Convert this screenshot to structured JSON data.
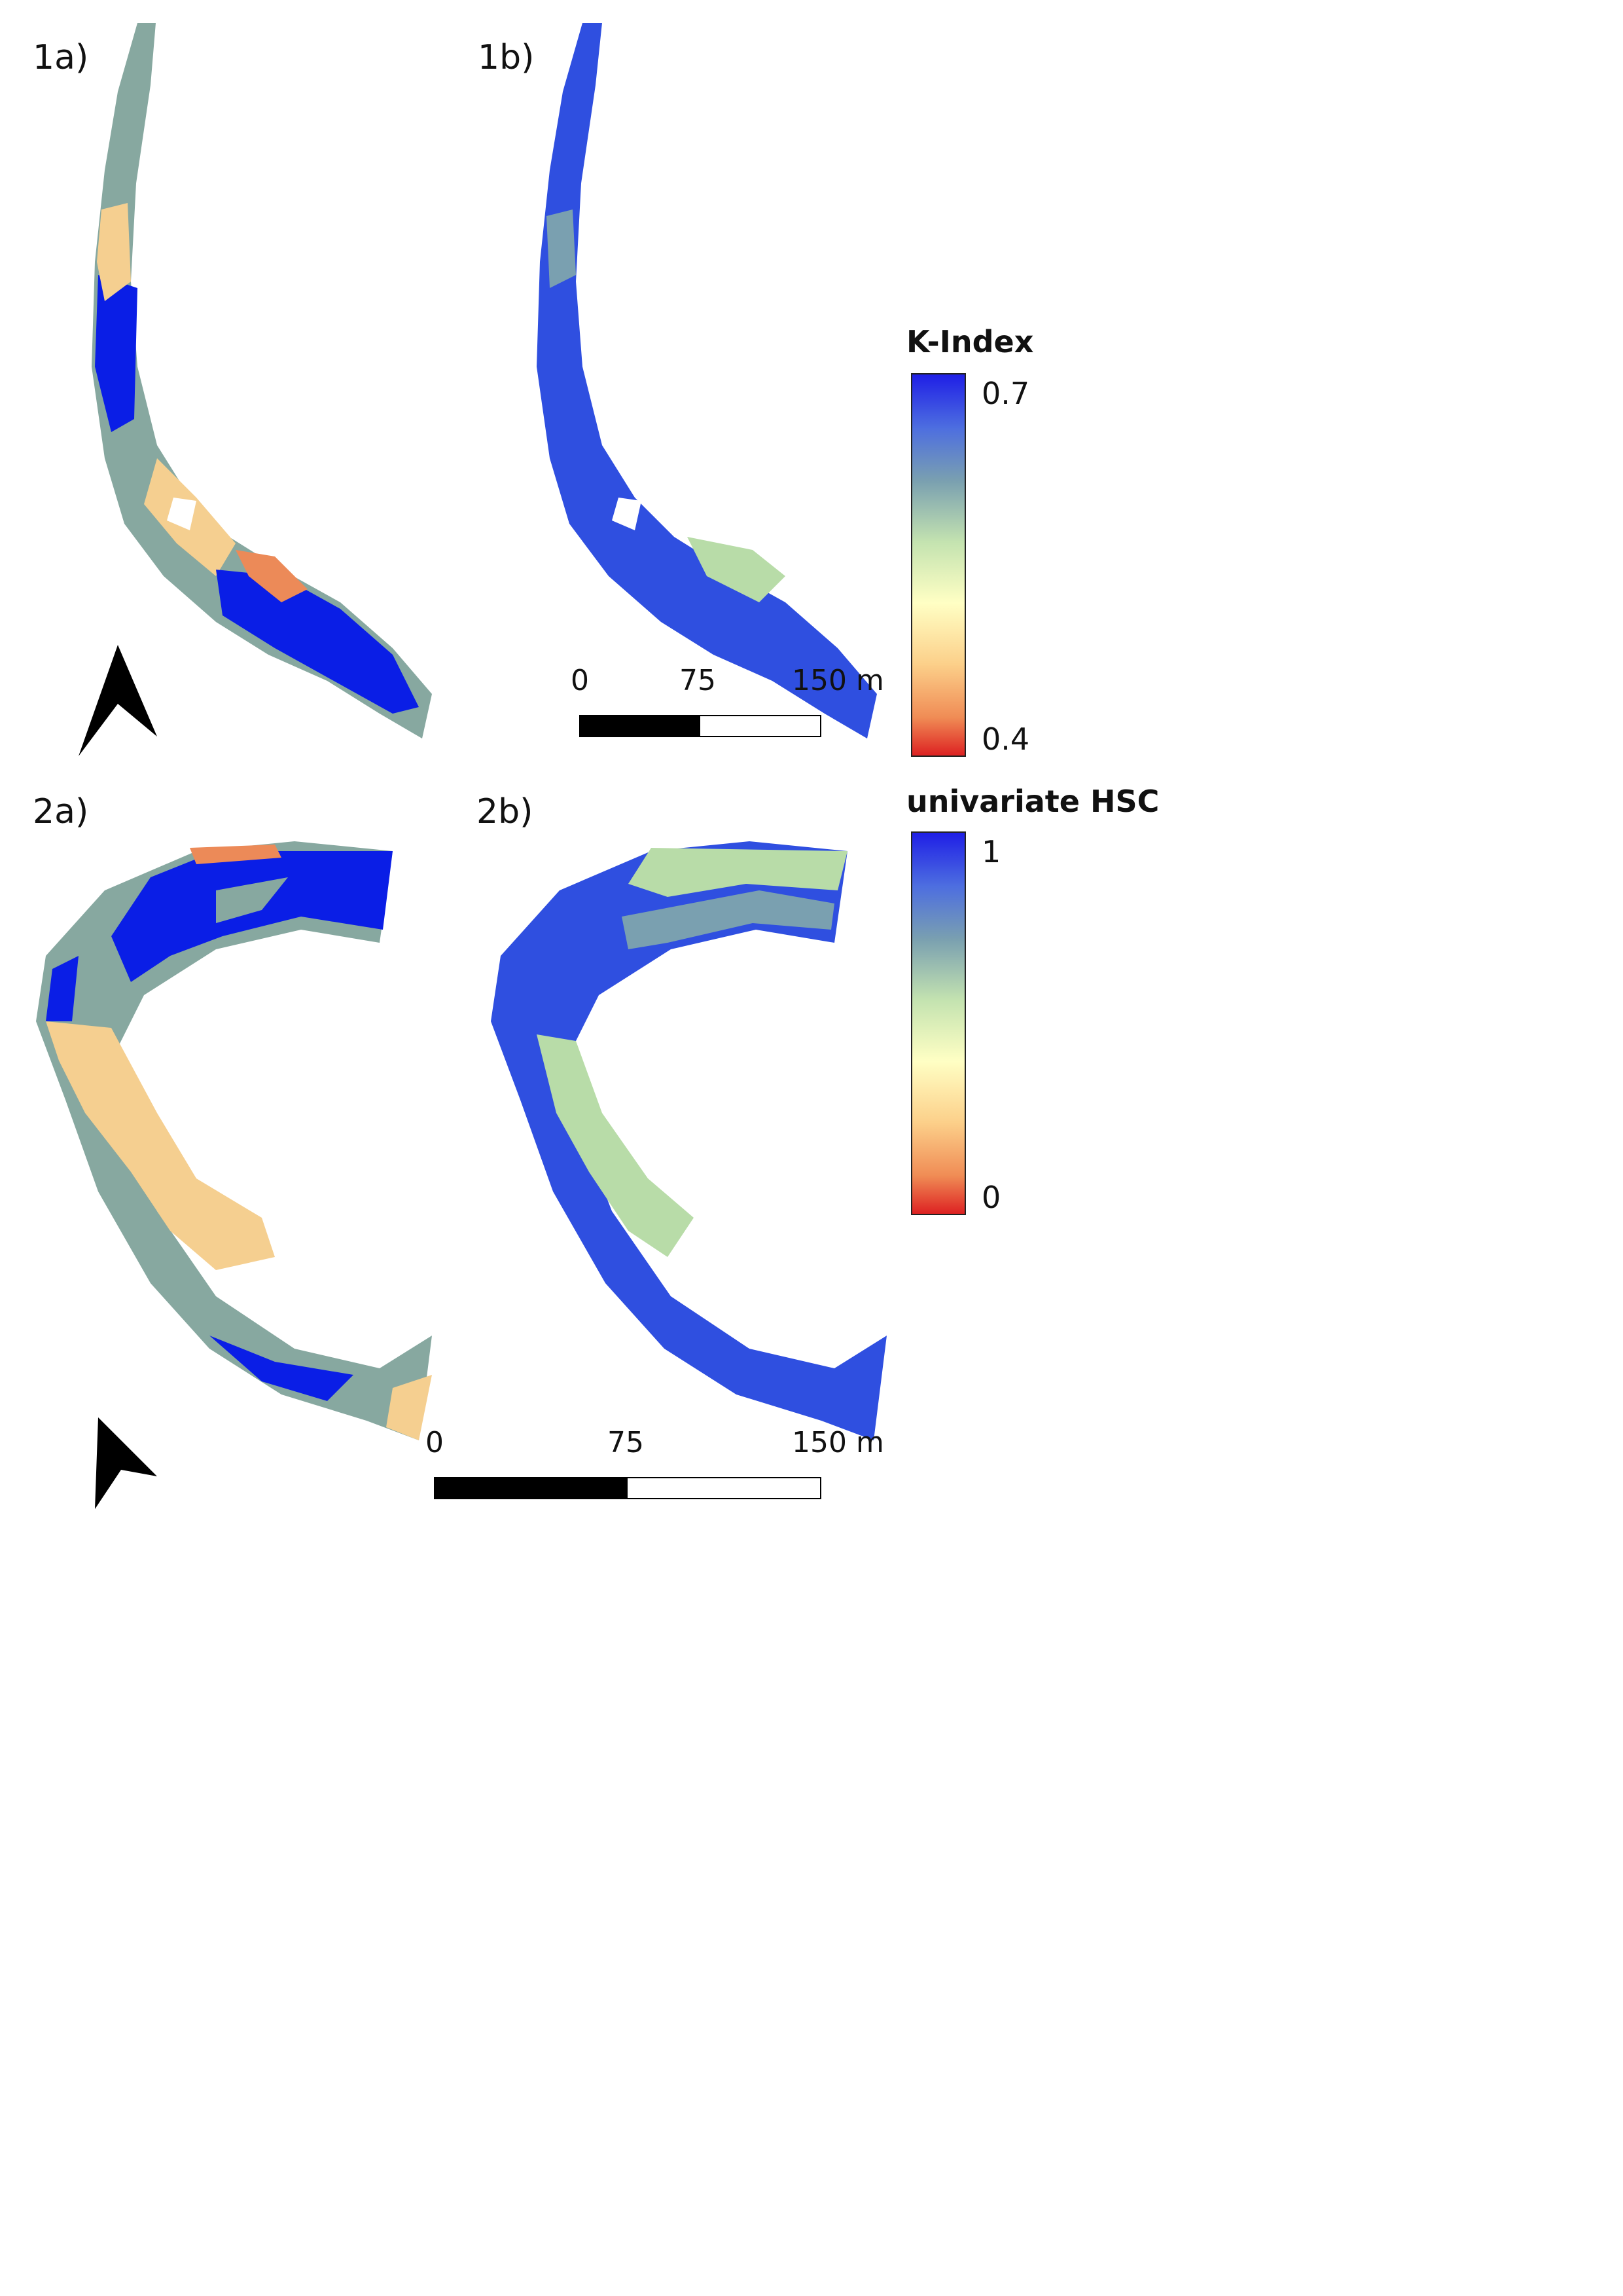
{
  "panels": {
    "p1a": "1a)",
    "p1b": "1b)",
    "p2a": "2a)",
    "p2b": "2b)"
  },
  "legend_k_index": {
    "title": "K-Index",
    "max": "0.7",
    "min": "0.4"
  },
  "legend_hsc": {
    "title": "univariate HSC",
    "max": "1",
    "min": "0"
  },
  "scalebar_1": {
    "tick0": "0",
    "tick1": "75",
    "tick2": "150 m"
  },
  "scalebar_2": {
    "tick0": "0",
    "tick1": "75",
    "tick2": "150 m"
  },
  "colors": {
    "class_blue": "#0a1ee6",
    "class_grey_teal": "#87a8a0",
    "class_sand": "#f5cf90",
    "class_orange": "#ec8a58",
    "continuous_blue": "#2f4fe0",
    "continuous_green": "#b8dca8"
  },
  "icons": [
    "north-arrow-icon"
  ]
}
